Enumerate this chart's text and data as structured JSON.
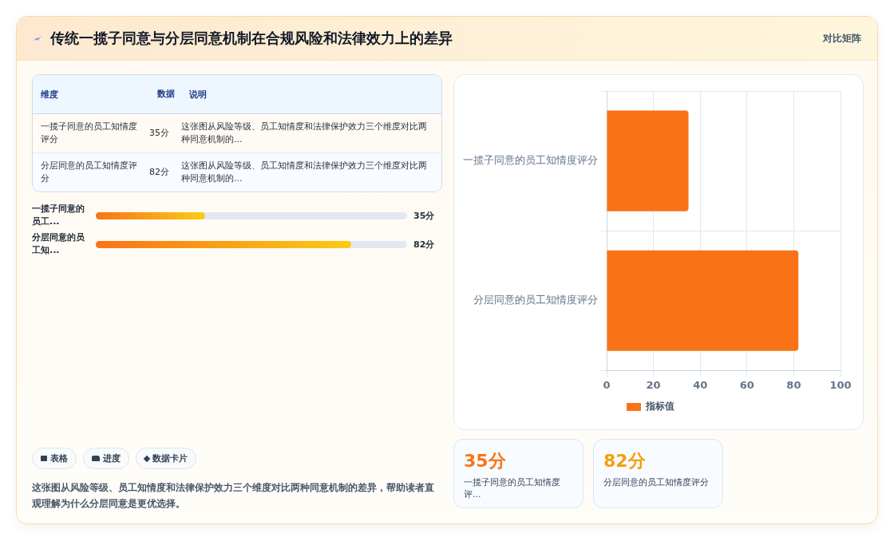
{
  "chart_data": {
    "type": "bar",
    "orientation": "horizontal",
    "title": "传统一揽子同意与分层同意机制在合规风险和法律效力上的差异",
    "categories": [
      "一揽子同意的员工知情度评分",
      "分层同意的员工知情度评分"
    ],
    "series": [
      {
        "name": "指标值",
        "color": "#f97316",
        "values": [
          35,
          82
        ],
        "value_labels": [
          "35分",
          "82分"
        ]
      }
    ],
    "xlim": [
      0,
      100
    ],
    "xticks": [
      0,
      20,
      40,
      60,
      80,
      100
    ],
    "grid": true,
    "legend": "bottom",
    "annotations": [
      "对比矩阵",
      "维度",
      "数据",
      "说明",
      "这张图从风险等级、员工知情度和法律保护效力三个维度对比两种同意机制的...",
      "这张图从风险等级、员工知情度和法律保护效力三个维度对比两种同意机制的...",
      "一揽子同意的员工...",
      "分层同意的员工知...",
      "表格",
      "进度",
      "数据卡片",
      "这张图从风险等级、员工知情度和法律保护效力三个维度对比两种同意机制的差异，帮助读者直观理解为什么分层同意是更优选择。",
      "一揽子同意的员工知情度评...",
      "分层同意的员工知情度评分"
    ]
  }
}
